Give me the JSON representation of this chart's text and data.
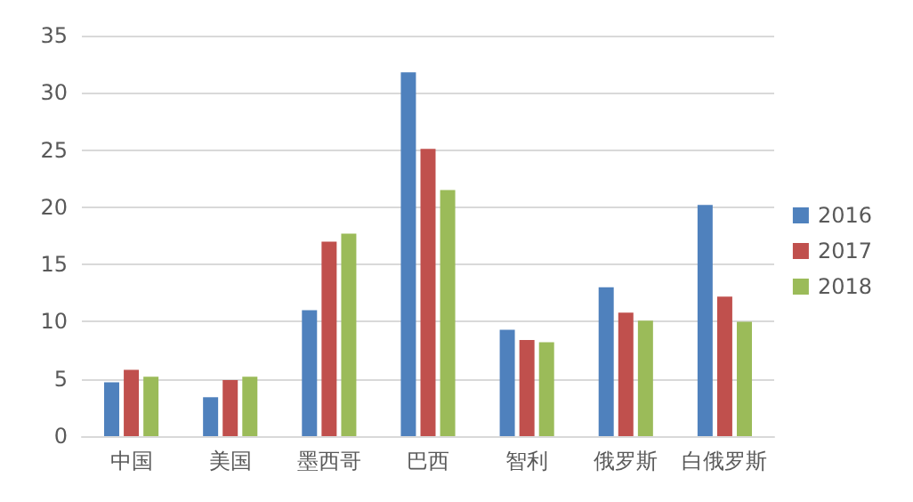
{
  "chart_data": {
    "type": "bar",
    "categories": [
      "中国",
      "美国",
      "墨西哥",
      "巴西",
      "智利",
      "俄罗斯",
      "白俄罗斯"
    ],
    "series": [
      {
        "name": "2016",
        "color": "#4f81bd",
        "values": [
          4.7,
          3.4,
          11.0,
          31.8,
          9.3,
          13.0,
          20.2
        ]
      },
      {
        "name": "2017",
        "color": "#c0504d",
        "values": [
          5.8,
          4.9,
          17.0,
          25.1,
          8.4,
          10.8,
          12.2
        ]
      },
      {
        "name": "2018",
        "color": "#9bbb59",
        "values": [
          5.2,
          5.2,
          17.7,
          21.5,
          8.2,
          10.1,
          10.0
        ]
      }
    ],
    "ylim": [
      0,
      35
    ],
    "yticks": [
      0,
      5,
      10,
      15,
      20,
      25,
      30,
      35
    ],
    "grid": "y",
    "legend": "right"
  }
}
